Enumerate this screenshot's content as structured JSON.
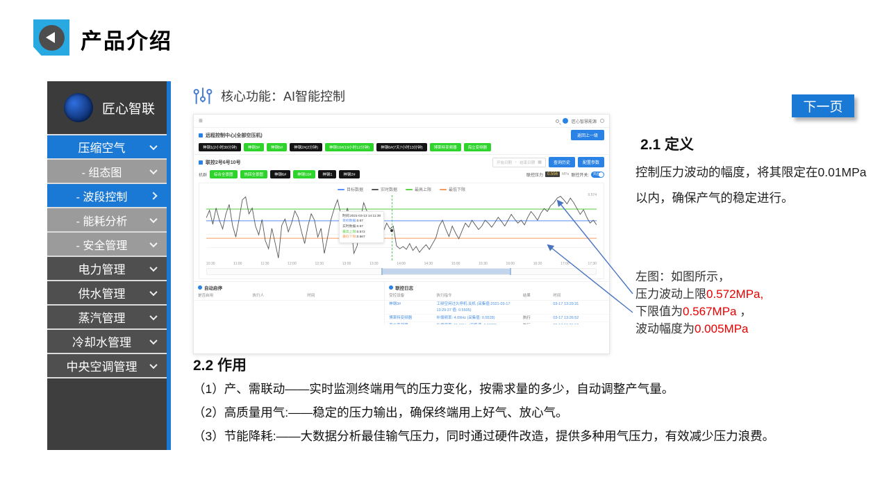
{
  "header": {
    "title": "产品介绍"
  },
  "sidebar": {
    "logo_text": "匠心智联",
    "items": [
      {
        "label": "压缩空气",
        "type": "primary-active",
        "chevron": "chev-down"
      },
      {
        "label": "- 组态图",
        "type": "sub",
        "chevron": "chev-down"
      },
      {
        "label": "- 波段控制",
        "type": "sub-active",
        "chevron": "chev-right"
      },
      {
        "label": "- 能耗分析",
        "type": "sub",
        "chevron": "chev-down"
      },
      {
        "label": "- 安全管理",
        "type": "sub",
        "chevron": "chev-down"
      },
      {
        "label": "电力管理",
        "type": "primary",
        "chevron": "chev-down"
      },
      {
        "label": "供水管理",
        "type": "primary",
        "chevron": "chev-down"
      },
      {
        "label": "蒸汽管理",
        "type": "primary",
        "chevron": "chev-down"
      },
      {
        "label": "冷却水管理",
        "type": "primary",
        "chevron": "chev-down"
      },
      {
        "label": "中央空调管理",
        "type": "primary",
        "chevron": "chev-down"
      }
    ]
  },
  "core": {
    "heading": "核心功能：AI智能控制"
  },
  "next_button": {
    "label": "下一页"
  },
  "dashboard": {
    "topbar": {
      "brand": "匠心智慧能源"
    },
    "remote": {
      "title": "远程控制中心(全部空压机)",
      "back_button": "返回上一级",
      "machines": [
        {
          "label": "神钢1(2小时39分钟)",
          "color": "black"
        },
        {
          "label": "神钢3#",
          "color": "green"
        },
        {
          "label": "神钢5#",
          "color": "green"
        },
        {
          "label": "神钢2#(2分钟)",
          "color": "black"
        },
        {
          "label": "神钢10#(19小时12分钟)",
          "color": "green"
        },
        {
          "label": "神钢6#(7天7小时13分钟)",
          "color": "black"
        },
        {
          "label": "博莱特变频器",
          "color": "green"
        },
        {
          "label": "海立变频器",
          "color": "green"
        }
      ]
    },
    "link_group": {
      "title": "联控2号6号10号",
      "date_start": "开始日期",
      "date_sep": "~",
      "date_end": "结束日期",
      "query_button": "查询历史",
      "config_button": "配置参数",
      "cluster_label": "机群",
      "cluster_buttons": [
        {
          "label": "综合全景图",
          "color": "green"
        },
        {
          "label": "热回全景图",
          "color": "green"
        },
        {
          "label": "神钢6#",
          "color": "black"
        },
        {
          "label": "神钢10#",
          "color": "green"
        },
        {
          "label": "神钢1",
          "color": "black"
        },
        {
          "label": "神钢2#",
          "color": "black"
        }
      ],
      "pressure_label": "联控压力",
      "pressure_value": "0.556",
      "pressure_unit": "MPa",
      "switch_label": "联控开关:",
      "switch_state": "开启"
    },
    "panels": {
      "auto_start": {
        "title": "自动启停",
        "columns": [
          "是否启用",
          "执行人",
          "时间"
        ]
      },
      "log": {
        "title": "联控日志",
        "columns": [
          "受控设备",
          "执行指令",
          "结果",
          "时间"
        ],
        "rows": [
          {
            "device": "神钢3#",
            "command": "工频空闲过久停机:关机 (采集值:2021-03-17 13:29:37 值: 0.5505)",
            "result": "",
            "time": "03-17 13:29:31"
          },
          {
            "device": "博莱特变频器",
            "command": "补偿频率: 4.09Hz (采集值: 0.5528)",
            "result": "执行",
            "time": "03-17 13:26:52"
          },
          {
            "device": "海立变频器",
            "command": "补偿频率: 11.63Hz (采集值: 0.5528)",
            "result": "执行",
            "time": "03-17 13:26:52"
          },
          {
            "device": "博莱特变频器",
            "command": "补偿频率: 4.13Hz (采集值: 0.5528)",
            "result": "执行",
            "time": "03-17 13:26:51"
          }
        ]
      }
    }
  },
  "chart_data": {
    "type": "line",
    "title": "",
    "xlabel": "",
    "ylabel": "压力(MPa)",
    "x_ticks": [
      "10:30",
      "11:00",
      "11:30",
      "12:00",
      "12:30",
      "13:00",
      "13:30",
      "14:00",
      "14:30",
      "15:00",
      "15:30",
      "16:00",
      "16:30",
      "17:00",
      "17:30"
    ],
    "ylim": [
      0.5632,
      0.5744
    ],
    "axis_max_label": "0.574",
    "legend_position": "top-center",
    "grid": true,
    "legend": [
      {
        "name": "目标数据",
        "color": "#5b8ff9"
      },
      {
        "name": "实时数据",
        "color": "#555555"
      },
      {
        "name": "最高上限",
        "color": "#5fd34a"
      },
      {
        "name": "最低下限",
        "color": "#f59a5c"
      }
    ],
    "target_value": 0.57,
    "upper_limit": 0.572,
    "lower_limit": 0.567,
    "realtime_points": [
      0.5705,
      0.5718,
      0.5694,
      0.5722,
      0.5701,
      0.5686,
      0.5712,
      0.5728,
      0.5692,
      0.5672,
      0.5703,
      0.5736,
      0.5741,
      0.5712,
      0.5722,
      0.5691,
      0.5676,
      0.5702,
      0.5666,
      0.5652,
      0.5687,
      0.5662,
      0.5636,
      0.5692,
      0.5703,
      0.5681,
      0.5696,
      0.5717,
      0.5706,
      0.5682,
      0.5661,
      0.5691,
      0.5712,
      0.5701,
      0.5672,
      0.5687,
      0.5644,
      0.5672,
      0.5702,
      0.5721,
      0.5736,
      0.5712,
      0.5691,
      0.5722,
      0.5701,
      0.5644,
      0.5657,
      0.5702,
      0.5731,
      0.5716,
      0.5696,
      0.5712,
      0.5691,
      0.5702,
      0.5682,
      0.5696,
      0.5686,
      0.5691,
      0.5657,
      0.5652,
      0.5656,
      0.5651,
      0.5661,
      0.5649,
      0.5656,
      0.5646,
      0.5653,
      0.5659,
      0.5651,
      0.5661,
      0.5671,
      0.5691,
      0.5701,
      0.5686,
      0.5673,
      0.5691,
      0.5679,
      0.5669,
      0.5683,
      0.5696,
      0.5689,
      0.5701,
      0.5693,
      0.5685,
      0.5691,
      0.5701,
      0.5696,
      0.5689,
      0.5697,
      0.5706,
      0.5699,
      0.5691,
      0.5701,
      0.5711,
      0.5703,
      0.5696,
      0.5701,
      0.5693,
      0.5706,
      0.5716,
      0.5709,
      0.5701,
      0.5713,
      0.5721,
      0.5716,
      0.5726,
      0.5731,
      0.5739,
      0.5742,
      0.5736,
      0.5729,
      0.5739,
      0.5731,
      0.5721,
      0.5711,
      0.5719,
      0.5706,
      0.5696,
      0.5701,
      0.5693
    ],
    "tooltip": {
      "time": "时间:2021-03-13 14:11:30",
      "rows": [
        {
          "label": "目标数据",
          "value": ":0.57",
          "color": "#5b8ff9"
        },
        {
          "label": "实时数据",
          "value": ":0.57",
          "color": "#555555"
        },
        {
          "label": "最高上限",
          "value": ":0.572",
          "color": "#5fd34a"
        },
        {
          "label": "最低下限",
          "value": ":0.567",
          "color": "#f59a5c"
        }
      ]
    }
  },
  "definition": {
    "heading": "2.1 定义",
    "body": "控制压力波动的幅度，将其限定在0.01MPa以内，确保产气的稳定进行。"
  },
  "annotation": {
    "l1": "左图：如图所示，",
    "l2a": "压力波动上限",
    "l2b": "0.572MPa,",
    "l3a": "下限值为",
    "l3b": "0.567MPa",
    "l3c": " ，",
    "l4a": "波动幅度为",
    "l4b": "0.005MPa"
  },
  "usage": {
    "heading": "2.2 作用",
    "items": [
      "（1）产、需联动——实时监测终端用气的压力变化，按需求量的多少，自动调整产气量。",
      "（2）高质量用气:——稳定的压力输出，确保终端用上好气、放心气。",
      "（3）节能降耗:——大数据分析最佳输气压力，同时通过硬件改造，提供多种用气压力，有效减少压力浪费。"
    ]
  }
}
